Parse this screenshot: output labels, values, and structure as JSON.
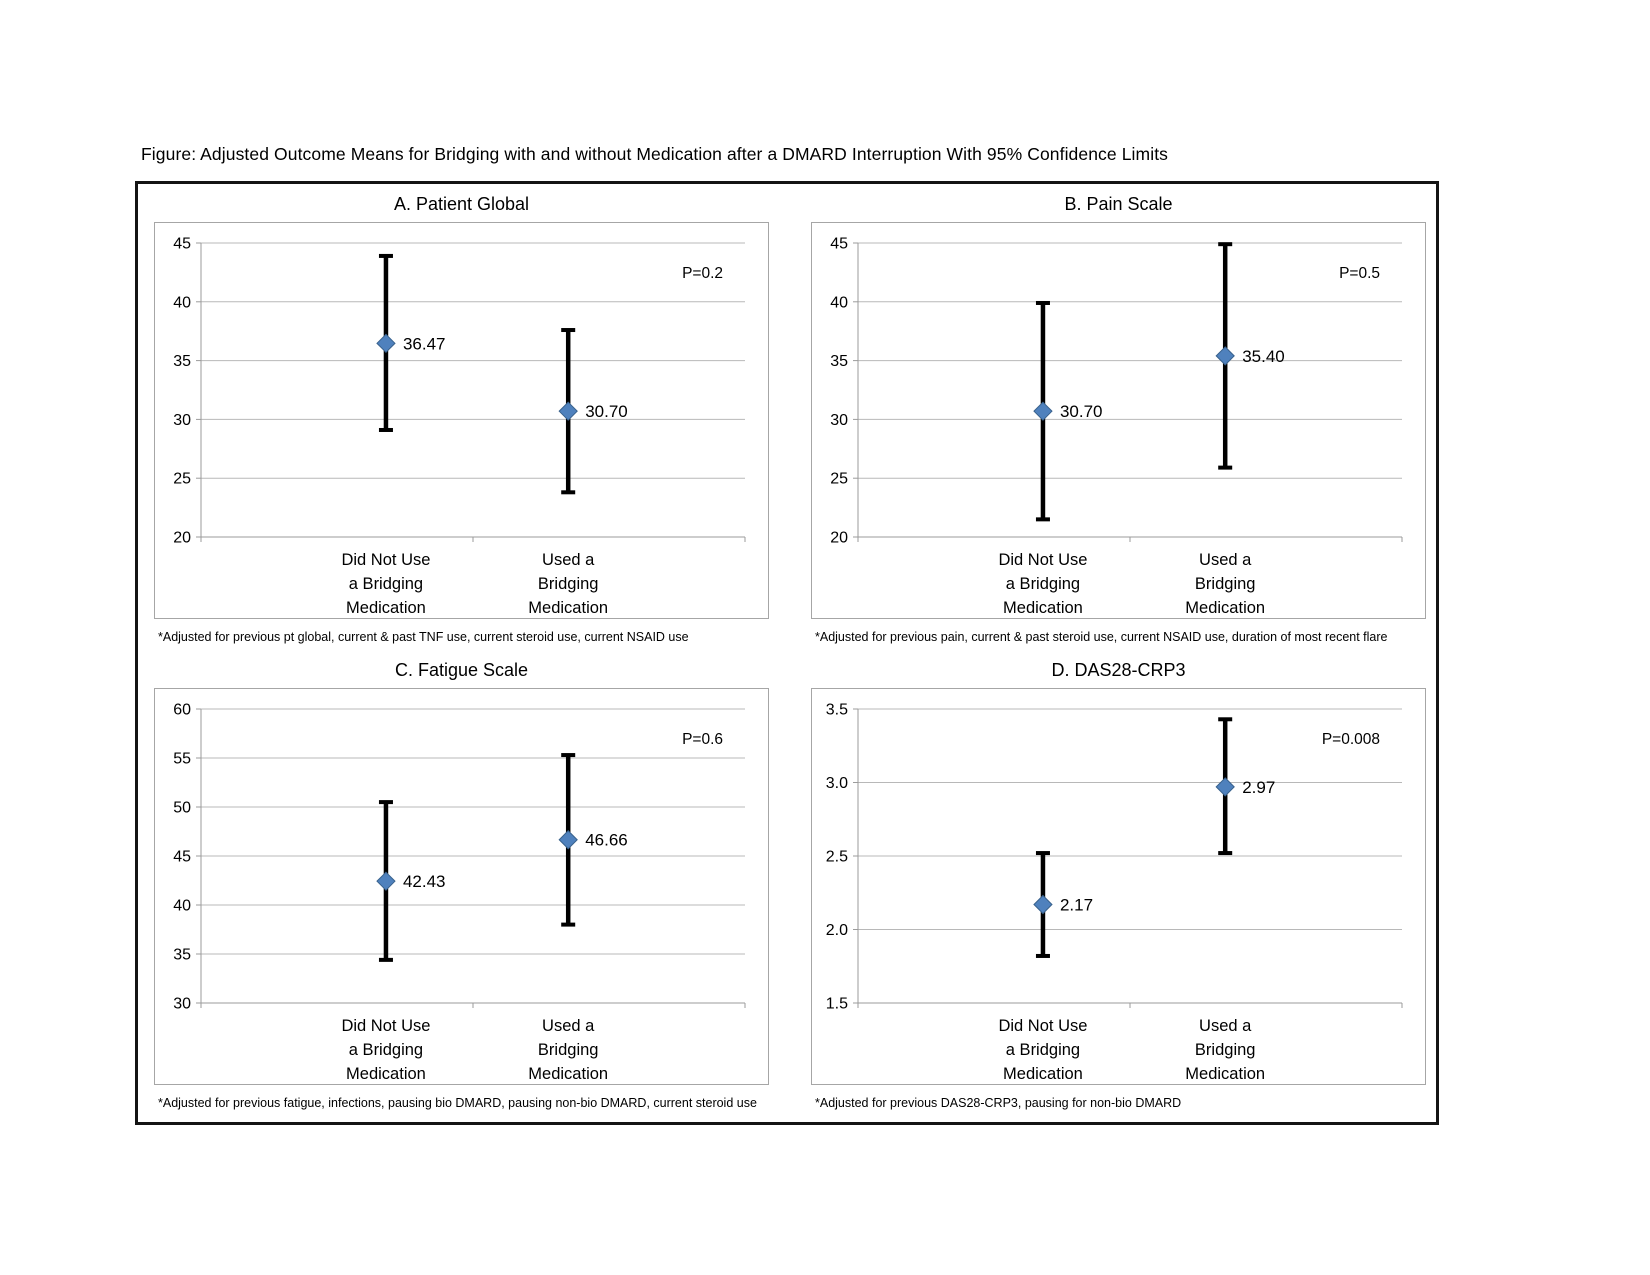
{
  "figure_title": "Figure: Adjusted Outcome Means for Bridging with and without Medication after a DMARD Interruption With 95% Confidence Limits",
  "colors": {
    "marker": "#4f81bd",
    "marker_edge": "#38618c",
    "error_bar": "#000000",
    "gridline": "#b8b8b8",
    "axis": "#9b9b9b",
    "frame_border": "#a6a6a6",
    "outer_border": "#141414",
    "text": "#000000"
  },
  "chart_data": [
    {
      "type": "scatter",
      "panel": "A",
      "title": "A.   Patient Global",
      "p_label": "P=0.2",
      "ylim": [
        20,
        45
      ],
      "ytick_labels": [
        "20",
        "25",
        "30",
        "35",
        "40",
        "45"
      ],
      "grid": true,
      "categories": [
        [
          "Did Not Use",
          "a Bridging",
          "Medication"
        ],
        [
          "Used a",
          "Bridging",
          "Medication"
        ]
      ],
      "series": [
        {
          "category": "Did Not Use a Bridging Medication",
          "mean": 36.47,
          "label": "36.47",
          "ci": [
            29.1,
            43.9
          ]
        },
        {
          "category": "Used a Bridging Medication",
          "mean": 30.7,
          "label": "30.70",
          "ci": [
            23.8,
            37.6
          ]
        }
      ],
      "footnote": "*Adjusted for previous pt global, current & past TNF use, current steroid use, current NSAID use"
    },
    {
      "type": "scatter",
      "panel": "B",
      "title": "B. Pain Scale",
      "p_label": "P=0.5",
      "ylim": [
        20,
        45
      ],
      "ytick_labels": [
        "20",
        "25",
        "30",
        "35",
        "40",
        "45"
      ],
      "grid": true,
      "categories": [
        [
          "Did Not Use",
          "a Bridging",
          "Medication"
        ],
        [
          "Used a",
          "Bridging",
          "Medication"
        ]
      ],
      "series": [
        {
          "category": "Did Not Use a Bridging Medication",
          "mean": 30.7,
          "label": "30.70",
          "ci": [
            21.5,
            39.9
          ]
        },
        {
          "category": "Used a Bridging Medication",
          "mean": 35.4,
          "label": "35.40",
          "ci": [
            25.9,
            44.9
          ]
        }
      ],
      "footnote": "*Adjusted for previous pain, current & past steroid use, current NSAID use, duration of most recent flare"
    },
    {
      "type": "scatter",
      "panel": "C",
      "title": "C. Fatigue Scale",
      "p_label": "P=0.6",
      "ylim": [
        30,
        60
      ],
      "ytick_labels": [
        "30",
        "35",
        "40",
        "45",
        "50",
        "55",
        "60"
      ],
      "grid": true,
      "categories": [
        [
          "Did Not Use",
          "a Bridging",
          "Medication"
        ],
        [
          "Used a",
          "Bridging",
          "Medication"
        ]
      ],
      "series": [
        {
          "category": "Did Not Use a Bridging Medication",
          "mean": 42.43,
          "label": "42.43",
          "ci": [
            34.4,
            50.5
          ]
        },
        {
          "category": "Used a Bridging Medication",
          "mean": 46.66,
          "label": "46.66",
          "ci": [
            38.0,
            55.3
          ]
        }
      ],
      "footnote": "*Adjusted for previous fatigue, infections, pausing bio DMARD, pausing non-bio DMARD, current steroid use"
    },
    {
      "type": "scatter",
      "panel": "D",
      "title": "D. DAS28-CRP3",
      "p_label": "P=0.008",
      "ylim": [
        1.5,
        3.5
      ],
      "ytick_labels": [
        "1.5",
        "2.0",
        "2.5",
        "3.0",
        "3.5"
      ],
      "grid": true,
      "categories": [
        [
          "Did Not Use",
          "a Bridging",
          "Medication"
        ],
        [
          "Used a",
          "Bridging",
          "Medication"
        ]
      ],
      "series": [
        {
          "category": "Did Not Use a Bridging Medication",
          "mean": 2.17,
          "label": "2.17",
          "ci": [
            1.82,
            2.52
          ]
        },
        {
          "category": "Used a Bridging Medication",
          "mean": 2.97,
          "label": "2.97",
          "ci": [
            2.52,
            3.43
          ]
        }
      ],
      "footnote": "*Adjusted for previous DAS28-CRP3, pausing for non-bio DMARD"
    }
  ]
}
